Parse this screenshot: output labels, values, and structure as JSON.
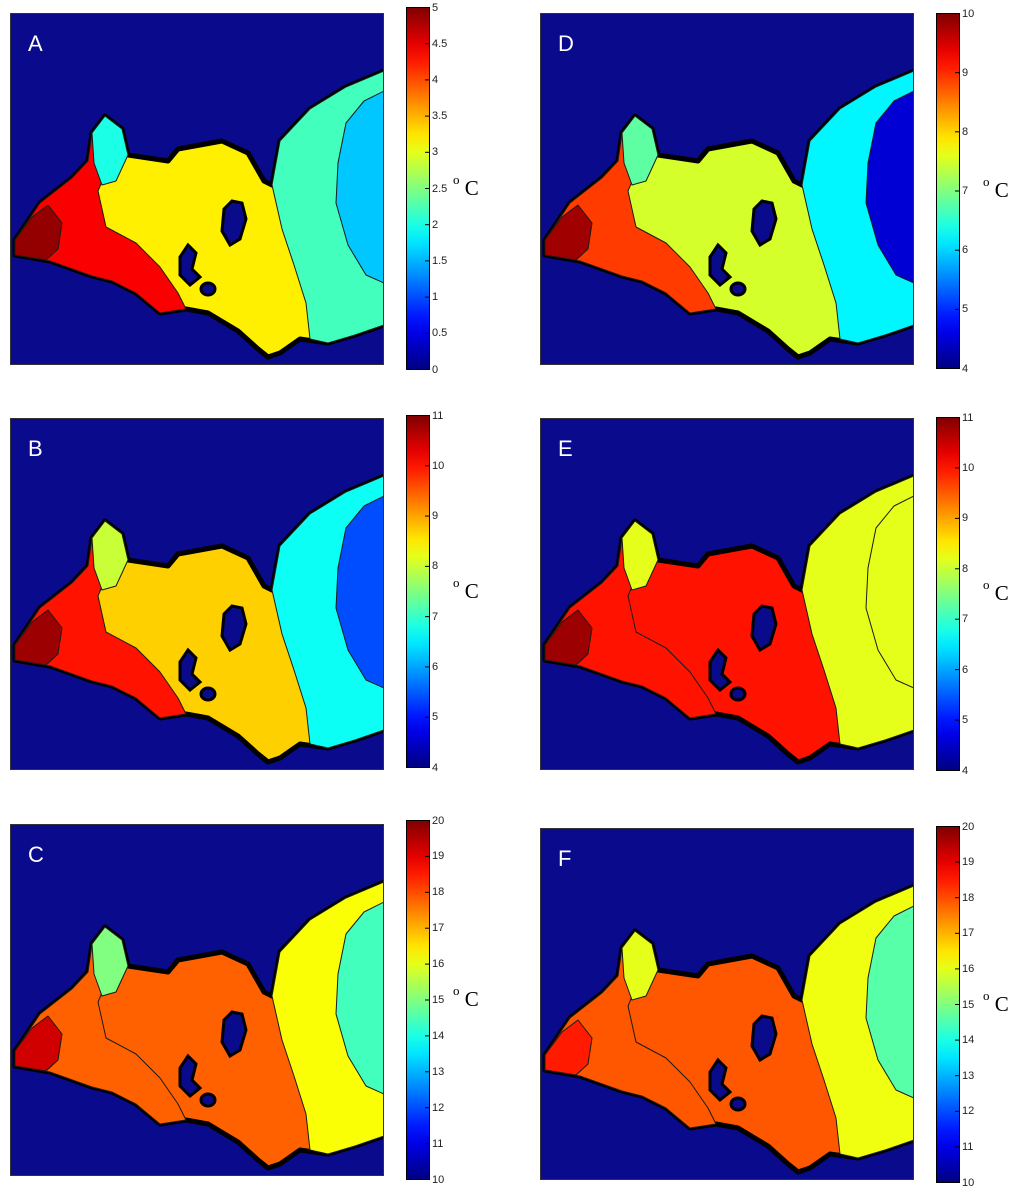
{
  "colors": {
    "background": "#0a0a8c",
    "outline": "#000000",
    "colormap": "jet"
  },
  "chart_data": [
    {
      "type": "heatmap",
      "panel": "A",
      "colorbar": {
        "min": 0,
        "max": 5,
        "ticks": [
          "0",
          "0.5",
          "1",
          "1.5",
          "2",
          "2.5",
          "3",
          "3.5",
          "4",
          "4.5",
          "5"
        ],
        "unit_sup": "o",
        "unit": "C"
      },
      "regions": [
        {
          "zone": "base",
          "value": 3.2
        },
        {
          "zone": "west-coast",
          "value": 4.4
        },
        {
          "zone": "far-west-tip",
          "value": 4.9
        },
        {
          "zone": "north-peninsula",
          "value": 2.0
        },
        {
          "zone": "east-basin",
          "value": 2.2
        },
        {
          "zone": "east-pocket",
          "value": 1.6
        }
      ]
    },
    {
      "type": "heatmap",
      "panel": "B",
      "colorbar": {
        "min": 4,
        "max": 11,
        "ticks": [
          "4",
          "5",
          "6",
          "7",
          "8",
          "9",
          "10",
          "11"
        ],
        "unit_sup": "o",
        "unit": "C"
      },
      "regions": [
        {
          "zone": "base",
          "value": 8.7
        },
        {
          "zone": "west-coast",
          "value": 10.0
        },
        {
          "zone": "far-west-tip",
          "value": 10.8
        },
        {
          "zone": "north-peninsula",
          "value": 8.0
        },
        {
          "zone": "east-basin",
          "value": 6.7
        },
        {
          "zone": "east-pocket",
          "value": 5.4
        }
      ]
    },
    {
      "type": "heatmap",
      "panel": "C",
      "colorbar": {
        "min": 10,
        "max": 20,
        "ticks": [
          "10",
          "11",
          "12",
          "13",
          "14",
          "15",
          "16",
          "17",
          "18",
          "19",
          "20"
        ],
        "unit_sup": "o",
        "unit": "C"
      },
      "regions": [
        {
          "zone": "base",
          "value": 17.8
        },
        {
          "zone": "west-coast",
          "value": 17.8
        },
        {
          "zone": "far-west-tip",
          "value": 19.2
        },
        {
          "zone": "north-peninsula",
          "value": 15.0
        },
        {
          "zone": "east-basin",
          "value": 16.2
        },
        {
          "zone": "east-pocket",
          "value": 14.4
        }
      ]
    },
    {
      "type": "heatmap",
      "panel": "D",
      "colorbar": {
        "min": 4,
        "max": 10,
        "ticks": [
          "4",
          "5",
          "6",
          "7",
          "8",
          "9",
          "10"
        ],
        "unit_sup": "o",
        "unit": "C"
      },
      "regions": [
        {
          "zone": "base",
          "value": 7.5
        },
        {
          "zone": "west-coast",
          "value": 8.9
        },
        {
          "zone": "far-west-tip",
          "value": 9.8
        },
        {
          "zone": "north-peninsula",
          "value": 6.8
        },
        {
          "zone": "east-basin",
          "value": 6.2
        },
        {
          "zone": "east-pocket",
          "value": 4.5
        }
      ]
    },
    {
      "type": "heatmap",
      "panel": "E",
      "colorbar": {
        "min": 4,
        "max": 11,
        "ticks": [
          "4",
          "5",
          "6",
          "7",
          "8",
          "9",
          "10",
          "11"
        ],
        "unit_sup": "o",
        "unit": "C"
      },
      "regions": [
        {
          "zone": "base",
          "value": 10.0
        },
        {
          "zone": "west-coast",
          "value": 10.0
        },
        {
          "zone": "far-west-tip",
          "value": 10.8
        },
        {
          "zone": "north-peninsula",
          "value": 8.2
        },
        {
          "zone": "east-basin",
          "value": 8.2
        },
        {
          "zone": "east-pocket",
          "value": 8.2
        }
      ]
    },
    {
      "type": "heatmap",
      "panel": "F",
      "colorbar": {
        "min": 10,
        "max": 20,
        "ticks": [
          "10",
          "11",
          "12",
          "13",
          "14",
          "15",
          "16",
          "17",
          "18",
          "19",
          "20"
        ],
        "unit_sup": "o",
        "unit": "C"
      },
      "regions": [
        {
          "zone": "base",
          "value": 17.9
        },
        {
          "zone": "west-coast",
          "value": 17.9
        },
        {
          "zone": "far-west-tip",
          "value": 18.5
        },
        {
          "zone": "north-peninsula",
          "value": 16.0
        },
        {
          "zone": "east-basin",
          "value": 16.1
        },
        {
          "zone": "east-pocket",
          "value": 14.6
        }
      ]
    }
  ]
}
